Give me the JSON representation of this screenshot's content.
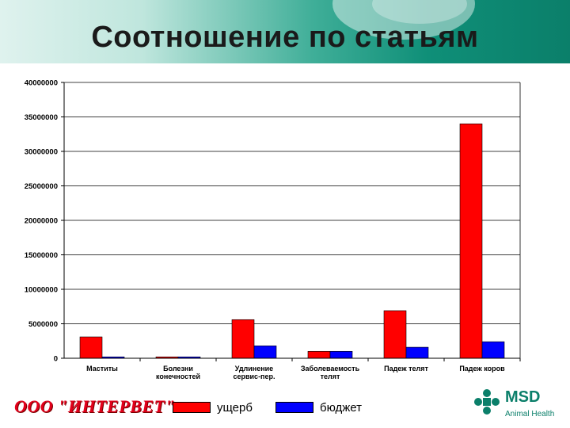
{
  "slide": {
    "title": "Соотношение по статьям",
    "footer_logo_text": "ООО \"ИНТЕРВЕТ\"",
    "msd_name": "MSD",
    "msd_sub": "Animal Health"
  },
  "colors": {
    "damage": "#ff0000",
    "budget": "#0000ff",
    "banner": "#0f8f78"
  },
  "chart_data": {
    "type": "bar",
    "title": "",
    "xlabel": "",
    "ylabel": "",
    "ylim": [
      0,
      40000000
    ],
    "y_ticks": [
      "0",
      "5000000",
      "10000000",
      "15000000",
      "20000000",
      "25000000",
      "30000000",
      "35000000",
      "40000000"
    ],
    "categories": [
      [
        "Маститы"
      ],
      [
        "Болезни",
        "конечностей"
      ],
      [
        "Удлинение",
        "сервис-пер."
      ],
      [
        "Заболеваемость",
        "телят"
      ],
      [
        "Падеж телят"
      ],
      [
        "Падеж коров"
      ]
    ],
    "series": [
      {
        "name": "ущерб",
        "color": "#ff0000",
        "values": [
          3100000,
          200000,
          5600000,
          1000000,
          6900000,
          34000000
        ]
      },
      {
        "name": "бюджет",
        "color": "#0000ff",
        "values": [
          200000,
          200000,
          1800000,
          1000000,
          1600000,
          2400000
        ]
      }
    ],
    "grid": true,
    "legend": "bottom"
  }
}
